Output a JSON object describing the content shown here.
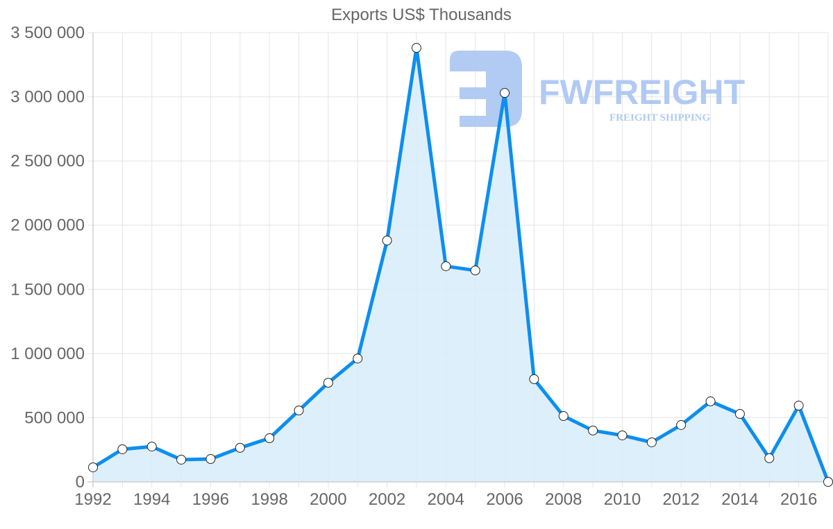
{
  "chart_data": {
    "type": "area",
    "title": "Exports US$ Thousands",
    "xlabel": "",
    "ylabel": "",
    "x": [
      1992,
      1993,
      1994,
      1995,
      1996,
      1997,
      1998,
      1999,
      2000,
      2001,
      2002,
      2003,
      2004,
      2005,
      2006,
      2007,
      2008,
      2009,
      2010,
      2011,
      2012,
      2013,
      2014,
      2015,
      2016,
      2017
    ],
    "series": [
      {
        "name": "Exports US$ Thousands",
        "values": [
          113000,
          254000,
          275000,
          173000,
          178000,
          265000,
          340000,
          556000,
          772000,
          961000,
          1880000,
          3381000,
          1680000,
          1647000,
          3030000,
          800000,
          513000,
          400000,
          362000,
          308000,
          443000,
          627000,
          529000,
          184000,
          594000,
          0
        ],
        "line_color": "#0d8ef0",
        "fill_color": "#d8ecfc"
      }
    ],
    "ylim": [
      0,
      3500000
    ],
    "xlim": [
      1992,
      2017
    ],
    "y_ticks": [
      "0",
      "500 000",
      "1 000 000",
      "1 500 000",
      "2 000 000",
      "2 500 000",
      "3 000 000",
      "3 500 000"
    ],
    "x_ticks": [
      "1992",
      "1994",
      "1996",
      "1998",
      "2000",
      "2002",
      "2004",
      "2006",
      "2008",
      "2010",
      "2012",
      "2014",
      "2016"
    ],
    "grid": true,
    "legend": "none"
  },
  "watermark": {
    "brand": "FWFREIGHT",
    "tagline": "FREIGHT SHIPPING",
    "color": "#a9c5f2"
  }
}
